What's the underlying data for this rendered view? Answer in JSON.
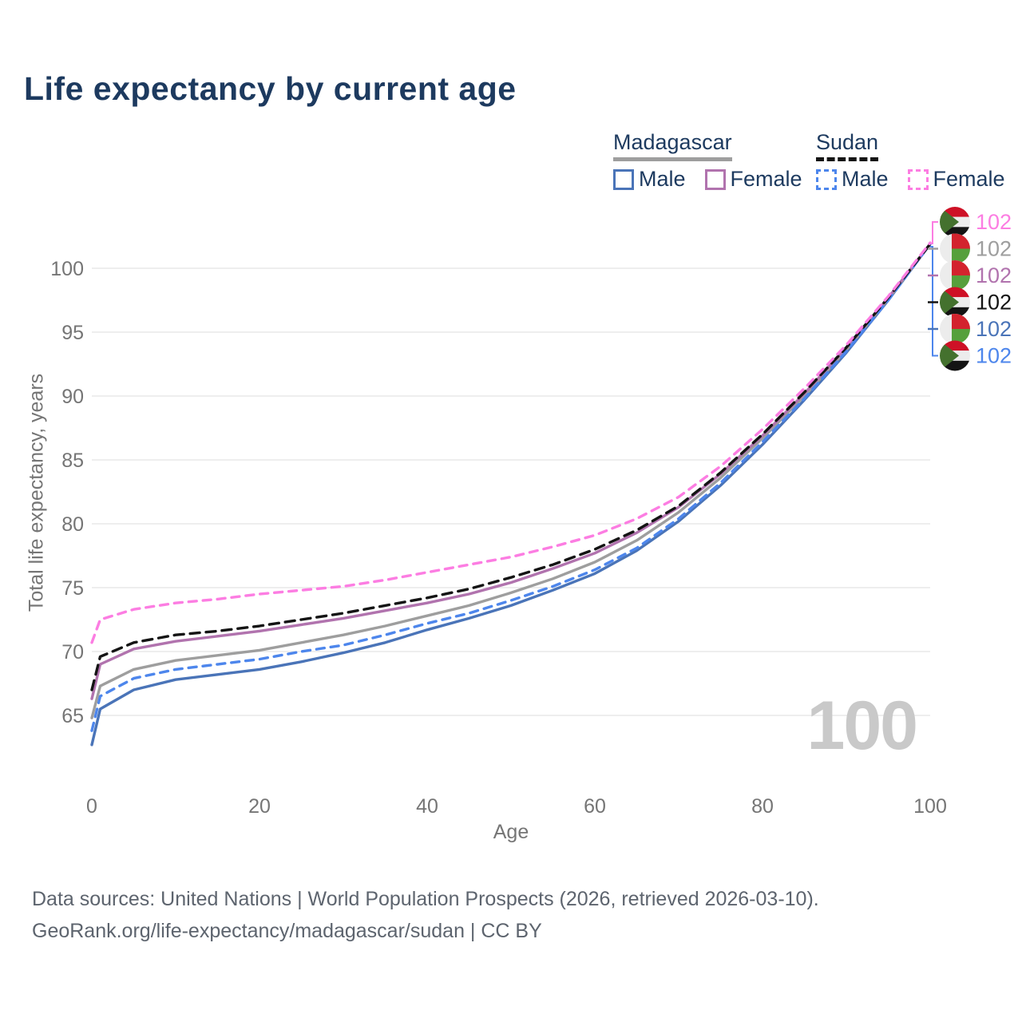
{
  "page": {
    "title": "Life expectancy by current age",
    "footer_line1": "Data sources: United Nations | World Population Prospects (2026, retrieved 2026-03-10).",
    "footer_line2": "GeoRank.org/life-expectancy/madagascar/sudan | CC BY"
  },
  "legend": {
    "groups": [
      {
        "name": "Madagascar",
        "line_style": "solid",
        "underline_color": "#9e9e9e",
        "items": [
          {
            "label": "Male",
            "color": "#4a74b8"
          },
          {
            "label": "Female",
            "color": "#b173ae"
          }
        ]
      },
      {
        "name": "Sudan",
        "line_style": "dashed",
        "underline_color": "#141414",
        "items": [
          {
            "label": "Male",
            "color": "#4d86ec"
          },
          {
            "label": "Female",
            "color": "#fc7de2"
          }
        ]
      }
    ]
  },
  "chart_data": {
    "type": "line",
    "title": "Life expectancy by current age",
    "xlabel": "Age",
    "ylabel": "Total life expectancy, years",
    "x_ticks": [
      0,
      20,
      40,
      60,
      80,
      100
    ],
    "y_ticks": [
      65,
      70,
      75,
      80,
      85,
      90,
      95,
      100
    ],
    "xlim": [
      0,
      100
    ],
    "ylim": [
      62,
      102.5
    ],
    "grid": true,
    "legend_position": "top-right",
    "age_counter": "100",
    "x": [
      0,
      1,
      5,
      10,
      15,
      20,
      25,
      30,
      35,
      40,
      45,
      50,
      55,
      60,
      65,
      70,
      75,
      80,
      85,
      90,
      95,
      100
    ],
    "series": [
      {
        "id": "madagascar-male",
        "name": "Madagascar Male",
        "color": "#4a74b8",
        "dash": null,
        "values": [
          62.7,
          65.5,
          67.0,
          67.8,
          68.2,
          68.6,
          69.2,
          69.9,
          70.7,
          71.7,
          72.6,
          73.6,
          74.8,
          76.1,
          77.9,
          80.2,
          83.0,
          86.2,
          89.7,
          93.4,
          97.5,
          101.9
        ]
      },
      {
        "id": "madagascar-all",
        "name": "Madagascar",
        "color": "#9e9e9e",
        "dash": null,
        "values": [
          64.8,
          67.3,
          68.6,
          69.3,
          69.7,
          70.1,
          70.7,
          71.3,
          72.0,
          72.8,
          73.6,
          74.6,
          75.7,
          77.0,
          78.7,
          80.9,
          83.6,
          86.7,
          90.0,
          93.6,
          97.6,
          101.9
        ]
      },
      {
        "id": "madagascar-female",
        "name": "Madagascar Female",
        "color": "#b173ae",
        "dash": null,
        "values": [
          66.3,
          69.0,
          70.2,
          70.8,
          71.2,
          71.6,
          72.1,
          72.6,
          73.2,
          73.8,
          74.5,
          75.4,
          76.5,
          77.7,
          79.3,
          81.3,
          83.9,
          86.9,
          90.2,
          93.8,
          97.7,
          101.9
        ]
      },
      {
        "id": "sudan-male",
        "name": "Sudan Male",
        "color": "#4d86ec",
        "dash": "10 8",
        "values": [
          63.8,
          66.5,
          67.9,
          68.6,
          69.0,
          69.4,
          70.0,
          70.5,
          71.3,
          72.2,
          73.0,
          74.0,
          75.1,
          76.4,
          78.1,
          80.4,
          83.2,
          86.4,
          89.8,
          93.5,
          97.5,
          101.9
        ]
      },
      {
        "id": "sudan-all",
        "name": "Sudan",
        "color": "#141414",
        "dash": "12 8",
        "values": [
          67.0,
          69.6,
          70.7,
          71.3,
          71.6,
          72.0,
          72.5,
          73.0,
          73.6,
          74.2,
          74.9,
          75.8,
          76.8,
          78.0,
          79.5,
          81.4,
          84.0,
          87.0,
          90.3,
          93.8,
          97.7,
          101.9
        ]
      },
      {
        "id": "sudan-female",
        "name": "Sudan Female",
        "color": "#fc7de2",
        "dash": "10 8",
        "values": [
          70.7,
          72.5,
          73.3,
          73.8,
          74.1,
          74.5,
          74.8,
          75.1,
          75.6,
          76.2,
          76.8,
          77.4,
          78.2,
          79.1,
          80.4,
          82.1,
          84.5,
          87.4,
          90.6,
          94.0,
          97.8,
          102.0
        ]
      }
    ],
    "end_labels": [
      {
        "value": "102",
        "flag": "sudan",
        "color": "#fc7de2",
        "series": "sudan-female"
      },
      {
        "value": "102",
        "flag": "madagascar",
        "color": "#9e9e9e",
        "series": "madagascar-all"
      },
      {
        "value": "102",
        "flag": "madagascar",
        "color": "#b173ae",
        "series": "madagascar-female"
      },
      {
        "value": "102",
        "flag": "sudan",
        "color": "#141414",
        "series": "sudan-all"
      },
      {
        "value": "102",
        "flag": "madagascar",
        "color": "#4a74b8",
        "series": "madagascar-male"
      },
      {
        "value": "102",
        "flag": "sudan",
        "color": "#4d86ec",
        "series": "sudan-male"
      }
    ]
  }
}
